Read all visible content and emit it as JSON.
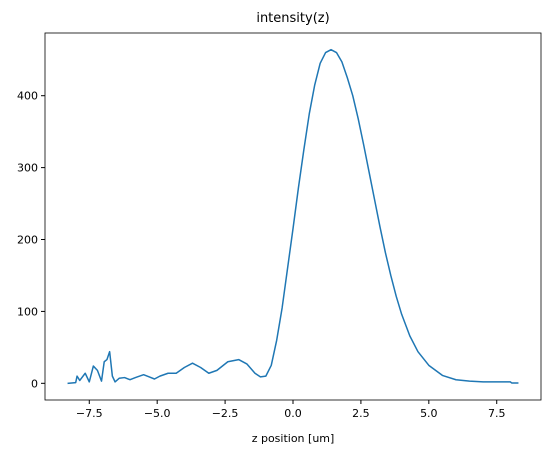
{
  "chart_data": {
    "type": "line",
    "title": "intensity(z)",
    "x_label": "z position [um]",
    "series": [
      {
        "color": "#1f77b4",
        "x": [
          -8.3,
          -8.0,
          -7.95,
          -7.85,
          -7.65,
          -7.5,
          -7.35,
          -7.2,
          -7.05,
          -6.95,
          -6.85,
          -6.75,
          -6.65,
          -6.55,
          -6.4,
          -6.2,
          -6.0,
          -5.8,
          -5.5,
          -5.3,
          -5.1,
          -4.9,
          -4.6,
          -4.3,
          -4.0,
          -3.7,
          -3.4,
          -3.1,
          -2.8,
          -2.4,
          -2.0,
          -1.7,
          -1.4,
          -1.2,
          -1.0,
          -0.8,
          -0.6,
          -0.4,
          -0.2,
          0,
          0.2,
          0.4,
          0.6,
          0.8,
          1.0,
          1.2,
          1.4,
          1.6,
          1.8,
          2.0,
          2.2,
          2.4,
          2.6,
          2.8,
          3.0,
          3.2,
          3.4,
          3.6,
          3.8,
          4.0,
          4.3,
          4.6,
          5.0,
          5.5,
          6.0,
          6.5,
          7.0,
          7.5,
          8.0,
          8.05,
          8.3
        ],
        "values": [
          0,
          1,
          10,
          4,
          14,
          2,
          24,
          18,
          3,
          30,
          33,
          44,
          10,
          2,
          7,
          8,
          5,
          8,
          12,
          9,
          6,
          10,
          14,
          14,
          22,
          28,
          22,
          14,
          18,
          30,
          33,
          27,
          14,
          9,
          10,
          25,
          60,
          105,
          160,
          215,
          272,
          325,
          375,
          415,
          445,
          460,
          464,
          460,
          447,
          425,
          400,
          368,
          332,
          294,
          256,
          218,
          182,
          150,
          121,
          96,
          66,
          44,
          25,
          11,
          5,
          3,
          2,
          2,
          2,
          0.5,
          0.5
        ]
      }
    ],
    "xlim": [
      -9.13,
      9.13
    ],
    "ylim": [
      -23.2,
      487.2
    ],
    "xticks": [
      {
        "value": -7.5,
        "label": "−7.5"
      },
      {
        "value": -5,
        "label": "−5.0"
      },
      {
        "value": -2.5,
        "label": "−2.5"
      },
      {
        "value": 0,
        "label": "0.0"
      },
      {
        "value": 2.5,
        "label": "2.5"
      },
      {
        "value": 5,
        "label": "5.0"
      },
      {
        "value": 7.5,
        "label": "7.5"
      }
    ],
    "yticks": [
      0,
      100,
      200,
      300,
      400
    ]
  }
}
